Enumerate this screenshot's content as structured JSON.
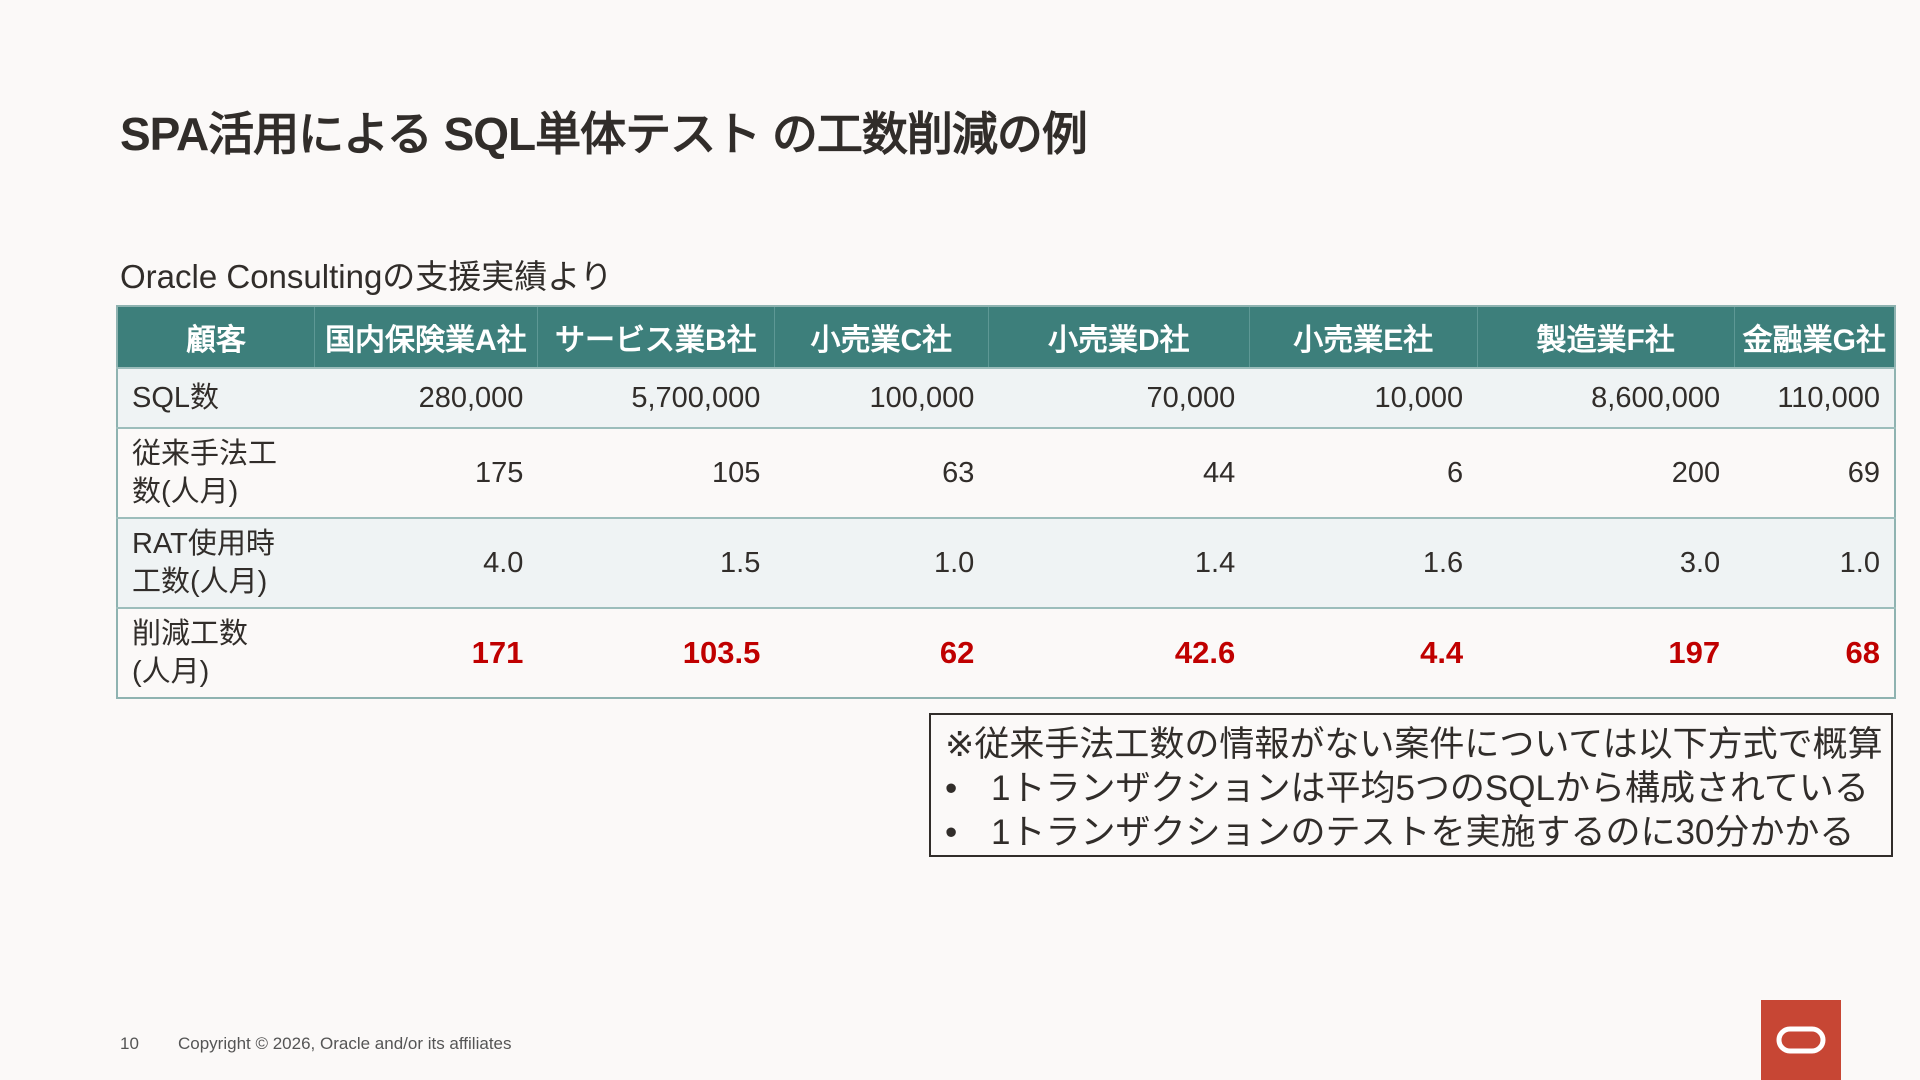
{
  "slide": {
    "title": "SPA活用による SQL単体テスト の工数削減の例",
    "subtitle": "Oracle Consultingの支援実績より"
  },
  "table": {
    "headers": [
      "顧客",
      "国内保険業A社",
      "サービス業B社",
      "小売業C社",
      "小売業D社",
      "小売業E社",
      "製造業F社",
      "金融業G社"
    ],
    "rows": [
      {
        "label_line1": "SQL数",
        "label_line2": "",
        "values": [
          "280,000",
          "5,700,000",
          "100,000",
          "70,000",
          "10,000",
          "8,600,000",
          "110,000"
        ]
      },
      {
        "label_line1": "従来手法工",
        "label_line2": "数(人月)",
        "values": [
          "175",
          "105",
          "63",
          "44",
          "6",
          "200",
          "69"
        ]
      },
      {
        "label_line1": "RAT使用時",
        "label_line2": "工数(人月)",
        "values": [
          "4.0",
          "1.5",
          "1.0",
          "1.4",
          "1.6",
          "3.0",
          "1.0"
        ]
      },
      {
        "label_line1": "削減工数",
        "label_line2": "(人月)",
        "values": [
          "171",
          "103.5",
          "62",
          "42.6",
          "4.4",
          "197",
          "68"
        ]
      }
    ]
  },
  "note": {
    "heading": "※従来手法工数の情報がない案件については以下方式で概算",
    "bullet_symbol": "•",
    "bullets": [
      "1トランザクションは平均5つのSQLから構成されている",
      "1トランザクションのテストを実施するのに30分かかる"
    ]
  },
  "footer": {
    "page_number": "10",
    "copyright": "Copyright © 2026, Oracle and/or its affiliates"
  },
  "colors": {
    "header_bg": "#3D7F7B",
    "highlight_text": "#C00000",
    "logo_bg": "#C74634"
  },
  "icons": {
    "logo": "oracle-logo-icon"
  }
}
